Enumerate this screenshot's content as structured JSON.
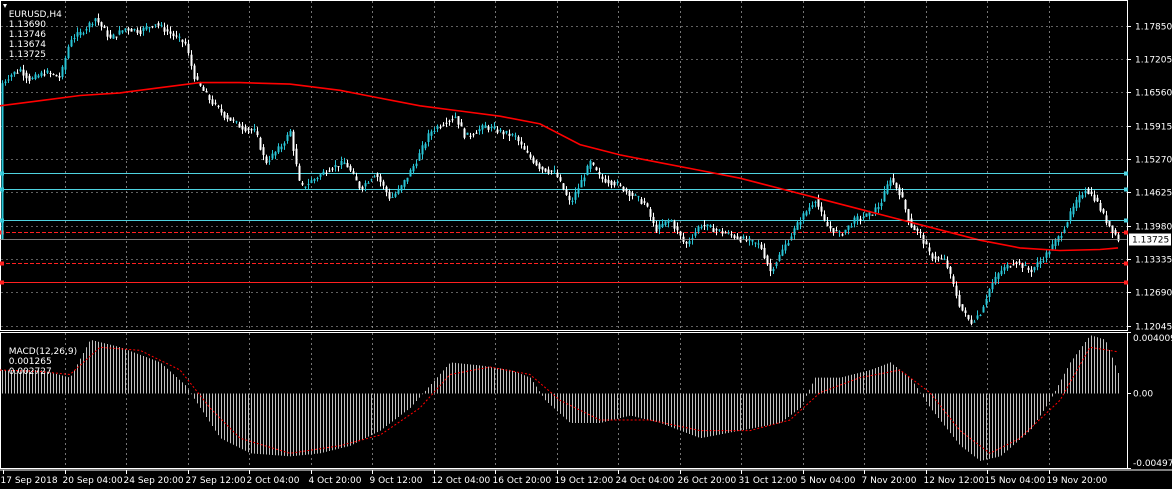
{
  "header": {
    "symbol": "EURUSD,H4",
    "open": "1.13690",
    "high": "1.13746",
    "low": "1.13674",
    "close": "1.13725"
  },
  "macd_header": {
    "name": "MACD(12,26,9)",
    "main": "0.001265",
    "signal": "0.002727"
  },
  "colors": {
    "background": "#000000",
    "grid": "#c0c0c0",
    "bull": "#29c5d6",
    "bear": "#ffffff",
    "ma": "#ff0000",
    "cyan_line": "#4fd3e0",
    "red_line": "#ff2020",
    "macd_hist": "#c0c0c0",
    "macd_signal": "#ff0000"
  },
  "chart_data": [
    {
      "type": "candlestick",
      "title": "EURUSD,H4",
      "x_tick_labels": [
        "17 Sep 2018",
        "20 Sep 04:00",
        "24 Sep 20:00",
        "27 Sep 12:00",
        "2 Oct 04:00",
        "4 Oct 20:00",
        "9 Oct 12:00",
        "12 Oct 04:00",
        "16 Oct 20:00",
        "19 Oct 12:00",
        "24 Oct 04:00",
        "26 Oct 20:00",
        "31 Oct 12:00",
        "5 Nov 04:00",
        "7 Nov 20:00",
        "12 Nov 12:00",
        "15 Nov 04:00",
        "19 Nov 20:00"
      ],
      "y_tick_labels": [
        "1.17850",
        "1.17205",
        "1.16560",
        "1.15915",
        "1.15270",
        "1.14625",
        "1.13980",
        "1.13335",
        "1.12690",
        "1.12045"
      ],
      "ylim": [
        1.12,
        1.18
      ],
      "current_price": "1.13725",
      "price_path": [
        [
          0,
          1.167
        ],
        [
          10,
          1.169
        ],
        [
          20,
          1.17
        ],
        [
          30,
          1.168
        ],
        [
          45,
          1.1695
        ],
        [
          60,
          1.1685
        ],
        [
          70,
          1.176
        ],
        [
          80,
          1.177
        ],
        [
          95,
          1.18
        ],
        [
          110,
          1.176
        ],
        [
          125,
          1.178
        ],
        [
          140,
          1.1775
        ],
        [
          155,
          1.179
        ],
        [
          170,
          1.177
        ],
        [
          185,
          1.175
        ],
        [
          195,
          1.168
        ],
        [
          210,
          1.164
        ],
        [
          225,
          1.161
        ],
        [
          240,
          1.159
        ],
        [
          255,
          1.158
        ],
        [
          265,
          1.152
        ],
        [
          280,
          1.155
        ],
        [
          290,
          1.158
        ],
        [
          300,
          1.147
        ],
        [
          315,
          1.149
        ],
        [
          330,
          1.151
        ],
        [
          345,
          1.152
        ],
        [
          360,
          1.147
        ],
        [
          375,
          1.15
        ],
        [
          390,
          1.145
        ],
        [
          400,
          1.147
        ],
        [
          415,
          1.152
        ],
        [
          430,
          1.158
        ],
        [
          445,
          1.16
        ],
        [
          455,
          1.161
        ],
        [
          465,
          1.157
        ],
        [
          475,
          1.158
        ],
        [
          485,
          1.159
        ],
        [
          500,
          1.158
        ],
        [
          515,
          1.157
        ],
        [
          525,
          1.154
        ],
        [
          540,
          1.151
        ],
        [
          555,
          1.15
        ],
        [
          570,
          1.144
        ],
        [
          580,
          1.148
        ],
        [
          590,
          1.152
        ],
        [
          600,
          1.149
        ],
        [
          615,
          1.148
        ],
        [
          630,
          1.146
        ],
        [
          645,
          1.144
        ],
        [
          655,
          1.139
        ],
        [
          670,
          1.141
        ],
        [
          685,
          1.136
        ],
        [
          700,
          1.14
        ],
        [
          715,
          1.139
        ],
        [
          730,
          1.138
        ],
        [
          745,
          1.137
        ],
        [
          760,
          1.136
        ],
        [
          770,
          1.131
        ],
        [
          785,
          1.136
        ],
        [
          800,
          1.141
        ],
        [
          815,
          1.145
        ],
        [
          825,
          1.14
        ],
        [
          840,
          1.138
        ],
        [
          855,
          1.141
        ],
        [
          870,
          1.142
        ],
        [
          880,
          1.144
        ],
        [
          890,
          1.149
        ],
        [
          900,
          1.146
        ],
        [
          910,
          1.14
        ],
        [
          920,
          1.138
        ],
        [
          930,
          1.134
        ],
        [
          945,
          1.133
        ],
        [
          960,
          1.124
        ],
        [
          970,
          1.121
        ],
        [
          980,
          1.123
        ],
        [
          990,
          1.128
        ],
        [
          1000,
          1.131
        ],
        [
          1015,
          1.133
        ],
        [
          1030,
          1.131
        ],
        [
          1045,
          1.134
        ],
        [
          1060,
          1.138
        ],
        [
          1075,
          1.144
        ],
        [
          1085,
          1.147
        ],
        [
          1095,
          1.145
        ],
        [
          1105,
          1.141
        ],
        [
          1118,
          1.1372
        ]
      ],
      "ma_path": [
        [
          0,
          1.163
        ],
        [
          40,
          1.164
        ],
        [
          80,
          1.165
        ],
        [
          120,
          1.1655
        ],
        [
          160,
          1.1665
        ],
        [
          200,
          1.1675
        ],
        [
          240,
          1.1675
        ],
        [
          290,
          1.1672
        ],
        [
          340,
          1.166
        ],
        [
          380,
          1.1645
        ],
        [
          420,
          1.163
        ],
        [
          460,
          1.162
        ],
        [
          500,
          1.161
        ],
        [
          540,
          1.1595
        ],
        [
          580,
          1.1555
        ],
        [
          620,
          1.1535
        ],
        [
          660,
          1.152
        ],
        [
          700,
          1.1505
        ],
        [
          740,
          1.149
        ],
        [
          780,
          1.147
        ],
        [
          820,
          1.145
        ],
        [
          860,
          1.143
        ],
        [
          900,
          1.141
        ],
        [
          940,
          1.139
        ],
        [
          980,
          1.137
        ],
        [
          1020,
          1.1355
        ],
        [
          1060,
          1.135
        ],
        [
          1100,
          1.1352
        ],
        [
          1118,
          1.1355
        ]
      ],
      "horizontal_lines": [
        {
          "price": 1.15,
          "color": "#4fd3e0",
          "style": "solid"
        },
        {
          "price": 1.147,
          "color": "#4fd3e0",
          "style": "solid"
        },
        {
          "price": 1.141,
          "color": "#4fd3e0",
          "style": "solid"
        },
        {
          "price": 1.1385,
          "color": "#ff2020",
          "style": "dashed"
        },
        {
          "price": 1.1325,
          "color": "#ff2020",
          "style": "dashed"
        },
        {
          "price": 1.129,
          "color": "#ff2020",
          "style": "solid"
        }
      ],
      "grid": true
    },
    {
      "type": "bar",
      "title": "MACD(12,26,9)",
      "y_tick_labels": [
        "0.004009",
        "0.00",
        "-0.00497"
      ],
      "ylim": [
        -0.00497,
        0.004009
      ],
      "main_path": [
        [
          0,
          0.0015
        ],
        [
          40,
          0.0015
        ],
        [
          70,
          0.001
        ],
        [
          90,
          0.0035
        ],
        [
          120,
          0.003
        ],
        [
          160,
          0.002
        ],
        [
          185,
          0.0005
        ],
        [
          200,
          -0.001
        ],
        [
          220,
          -0.003
        ],
        [
          250,
          -0.004
        ],
        [
          290,
          -0.0042
        ],
        [
          320,
          -0.004
        ],
        [
          350,
          -0.0035
        ],
        [
          380,
          -0.0025
        ],
        [
          410,
          -0.001
        ],
        [
          430,
          0.0005
        ],
        [
          450,
          0.002
        ],
        [
          480,
          0.0018
        ],
        [
          510,
          0.0015
        ],
        [
          530,
          0.001
        ],
        [
          545,
          -0.0005
        ],
        [
          570,
          -0.002
        ],
        [
          600,
          -0.002
        ],
        [
          630,
          -0.0015
        ],
        [
          660,
          -0.002
        ],
        [
          700,
          -0.003
        ],
        [
          740,
          -0.0025
        ],
        [
          780,
          -0.002
        ],
        [
          800,
          -0.001
        ],
        [
          815,
          0.001
        ],
        [
          840,
          0.001
        ],
        [
          870,
          0.0015
        ],
        [
          890,
          0.002
        ],
        [
          910,
          0.001
        ],
        [
          930,
          -0.001
        ],
        [
          960,
          -0.0035
        ],
        [
          980,
          -0.0045
        ],
        [
          1000,
          -0.0042
        ],
        [
          1030,
          -0.0025
        ],
        [
          1050,
          -0.0005
        ],
        [
          1070,
          0.002
        ],
        [
          1090,
          0.0038
        ],
        [
          1105,
          0.0035
        ],
        [
          1118,
          0.0013
        ]
      ],
      "signal_path": [
        [
          0,
          0.0015
        ],
        [
          40,
          0.0014
        ],
        [
          70,
          0.0012
        ],
        [
          100,
          0.003
        ],
        [
          140,
          0.0028
        ],
        [
          180,
          0.0015
        ],
        [
          210,
          -0.001
        ],
        [
          240,
          -0.003
        ],
        [
          290,
          -0.004
        ],
        [
          340,
          -0.0035
        ],
        [
          380,
          -0.0028
        ],
        [
          420,
          -0.001
        ],
        [
          450,
          0.0012
        ],
        [
          490,
          0.0017
        ],
        [
          530,
          0.0012
        ],
        [
          560,
          -0.0005
        ],
        [
          600,
          -0.0018
        ],
        [
          650,
          -0.0018
        ],
        [
          700,
          -0.0025
        ],
        [
          750,
          -0.0025
        ],
        [
          790,
          -0.0018
        ],
        [
          820,
          0.0
        ],
        [
          860,
          0.001
        ],
        [
          900,
          0.0015
        ],
        [
          930,
          0.0
        ],
        [
          960,
          -0.0025
        ],
        [
          990,
          -0.004
        ],
        [
          1020,
          -0.003
        ],
        [
          1060,
          -0.0005
        ],
        [
          1090,
          0.003
        ],
        [
          1118,
          0.0027
        ]
      ]
    }
  ]
}
